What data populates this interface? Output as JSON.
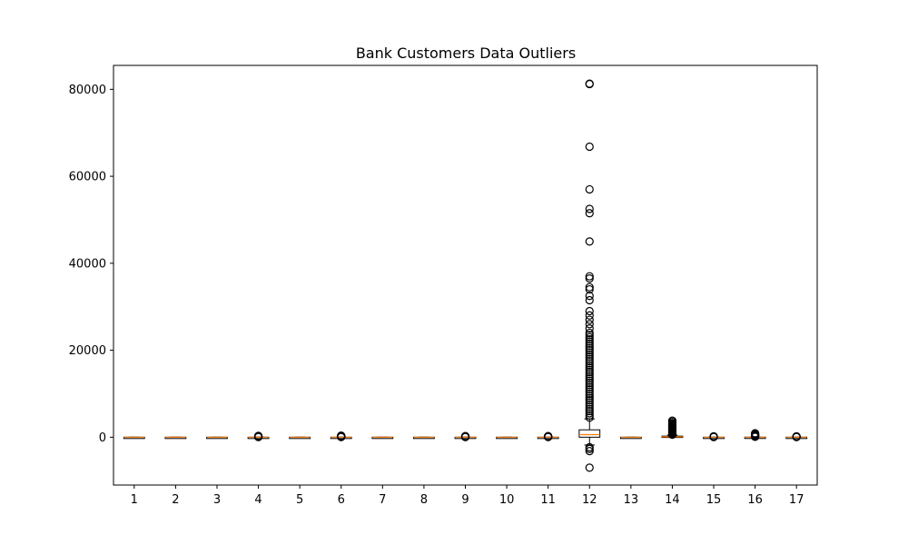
{
  "chart_data": {
    "type": "box",
    "title": "Bank Customers Data Outliers",
    "xlabel": "",
    "ylabel": "",
    "categories": [
      "1",
      "2",
      "3",
      "4",
      "5",
      "6",
      "7",
      "8",
      "9",
      "10",
      "11",
      "12",
      "13",
      "14",
      "15",
      "16",
      "17"
    ],
    "ylim": [
      -11000,
      85500
    ],
    "yticks": [
      0,
      20000,
      40000,
      60000,
      80000
    ],
    "grid": false,
    "colors": {
      "box": "#000000",
      "median": "#ff7f0e",
      "flier": "#000000"
    },
    "boxes": [
      {
        "label": "1",
        "whislo": -20,
        "q1": -10,
        "med": 0,
        "q3": 10,
        "whishi": 20,
        "fliers": []
      },
      {
        "label": "2",
        "whislo": -20,
        "q1": -10,
        "med": 0,
        "q3": 10,
        "whishi": 20,
        "fliers": []
      },
      {
        "label": "3",
        "whislo": -20,
        "q1": -10,
        "med": 0,
        "q3": 10,
        "whishi": 20,
        "fliers": []
      },
      {
        "label": "4",
        "whislo": -20,
        "q1": -10,
        "med": 0,
        "q3": 10,
        "whishi": 30,
        "fliers": [
          50,
          100,
          150,
          200,
          250,
          300
        ]
      },
      {
        "label": "5",
        "whislo": -20,
        "q1": -10,
        "med": 0,
        "q3": 10,
        "whishi": 20,
        "fliers": []
      },
      {
        "label": "6",
        "whislo": -20,
        "q1": -10,
        "med": 0,
        "q3": 10,
        "whishi": 30,
        "fliers": [
          50,
          100,
          150,
          200,
          250,
          300,
          350
        ]
      },
      {
        "label": "7",
        "whislo": -20,
        "q1": -10,
        "med": 0,
        "q3": 10,
        "whishi": 20,
        "fliers": []
      },
      {
        "label": "8",
        "whislo": -20,
        "q1": -10,
        "med": 0,
        "q3": 10,
        "whishi": 20,
        "fliers": []
      },
      {
        "label": "9",
        "whislo": -20,
        "q1": -10,
        "med": 0,
        "q3": 10,
        "whishi": 30,
        "fliers": [
          50,
          100,
          150,
          200,
          250
        ]
      },
      {
        "label": "10",
        "whislo": -20,
        "q1": -10,
        "med": 0,
        "q3": 10,
        "whishi": 20,
        "fliers": []
      },
      {
        "label": "11",
        "whislo": -20,
        "q1": -10,
        "med": 0,
        "q3": 10,
        "whishi": 30,
        "fliers": [
          50,
          100,
          150,
          200,
          250
        ]
      },
      {
        "label": "12",
        "whislo": -1800,
        "q1": 0,
        "med": 600,
        "q3": 1700,
        "whishi": 4200,
        "fliers": [
          -2300,
          -2700,
          -3200,
          -7000,
          4500,
          5000,
          5500,
          6000,
          6500,
          7000,
          7500,
          8000,
          8500,
          9000,
          9500,
          10000,
          10500,
          11000,
          11500,
          12000,
          12500,
          13000,
          13500,
          14000,
          14500,
          15000,
          15500,
          16000,
          16500,
          17000,
          17500,
          18000,
          18500,
          19000,
          19500,
          20000,
          20500,
          21000,
          21500,
          22000,
          22500,
          23000,
          23500,
          24000,
          25000,
          26000,
          27000,
          28000,
          29000,
          31500,
          32500,
          34000,
          34500,
          36500,
          37000,
          45000,
          51500,
          52500,
          57000,
          66800,
          81200,
          81300
        ]
      },
      {
        "label": "13",
        "whislo": -20,
        "q1": -10,
        "med": 0,
        "q3": 10,
        "whishi": 20,
        "fliers": []
      },
      {
        "label": "14",
        "whislo": -30,
        "q1": 50,
        "med": 100,
        "q3": 250,
        "whishi": 500,
        "fliers": [
          600,
          800,
          1000,
          1200,
          1400,
          1600,
          1800,
          2000,
          2200,
          2400,
          2600,
          2800,
          3000,
          3200,
          3500,
          3800
        ]
      },
      {
        "label": "15",
        "whislo": -20,
        "q1": -10,
        "med": 0,
        "q3": 10,
        "whishi": 30,
        "fliers": [
          50,
          100,
          150,
          200
        ]
      },
      {
        "label": "16",
        "whislo": -20,
        "q1": -10,
        "med": 0,
        "q3": 20,
        "whishi": 40,
        "fliers": [
          100,
          200,
          300,
          400,
          500,
          600,
          700,
          800,
          900
        ]
      },
      {
        "label": "17",
        "whislo": -20,
        "q1": -10,
        "med": 0,
        "q3": 10,
        "whishi": 30,
        "fliers": [
          50,
          100,
          150,
          200
        ]
      }
    ]
  }
}
